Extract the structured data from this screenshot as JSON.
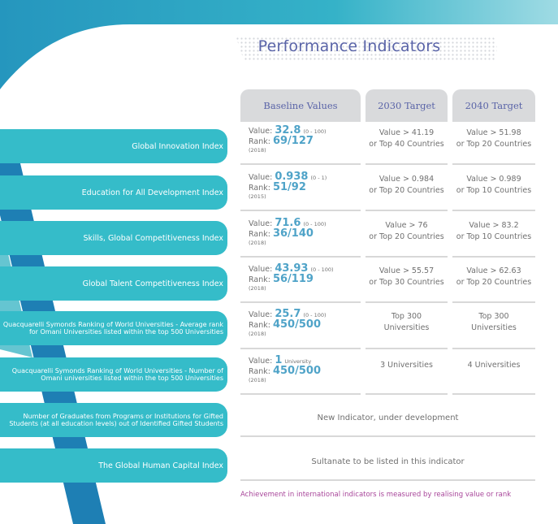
{
  "title": "Performance Indicators",
  "columns": [
    "Baseline Values",
    "2030 Target",
    "2040 Target"
  ],
  "rows": [
    {
      "label": "Global Innovation Index",
      "value_label": "Value:",
      "value": "32.8",
      "value_note": "(0 - 100)",
      "rank_label": "Rank:",
      "rank": "69/127",
      "year": "(2018)",
      "target_2030": "Value > 41.19\nor Top 40 Countries",
      "target_2040": "Value > 51.98\nor Top 20 Countries"
    },
    {
      "label": "Education for All Development Index",
      "value_label": "Value:",
      "value": "0.938",
      "value_note": "(0 - 1)",
      "rank_label": "Rank:",
      "rank": "51/92",
      "year": "(2015)",
      "target_2030": "Value > 0.984\nor Top 20 Countries",
      "target_2040": "Value > 0.989\nor Top 10 Countries"
    },
    {
      "label": "Skills, Global Competitiveness Index",
      "value_label": "Value:",
      "value": "71.6",
      "value_note": "(0 - 100)",
      "rank_label": "Rank:",
      "rank": "36/140",
      "year": "(2018)",
      "target_2030": "Value > 76\nor Top 20 Countries",
      "target_2040": "Value > 83.2\nor Top 10 Countries"
    },
    {
      "label": "Global Talent Competitiveness Index",
      "value_label": "Value:",
      "value": "43.93",
      "value_note": "(0 - 100)",
      "rank_label": "Rank:",
      "rank": "56/119",
      "year": "(2018)",
      "target_2030": "Value > 55.57\nor Top 30 Countries",
      "target_2040": "Value > 62.63\nor Top 20 Countries"
    },
    {
      "label": "Quacquarelli Symonds Ranking of World Universities - Average rank for Omani Universities listed within the top 500 Universities",
      "value_label": "Value:",
      "value": "25.7",
      "value_note": "(0 - 100)",
      "rank_label": "Rank:",
      "rank": "450/500",
      "year": "(2018)",
      "target_2030": "Top 300\nUniversities",
      "target_2040": "Top 300\nUniversities"
    },
    {
      "label": "Quacquarelli Symonds Ranking of World Universities - Number of Omani universities listed within the top 500 Universities",
      "value_label": "Value:",
      "value": "1",
      "value_note": "University",
      "rank_label": "Rank:",
      "rank": "450/500",
      "year": "(2018)",
      "target_2030": "3 Universities",
      "target_2040": "4 Universities"
    },
    {
      "label": "Number of Graduates from Programs or Institutions for Gifted Students (at all education levels) out of Identified Gifted Students",
      "span_text": "New Indicator, under development"
    },
    {
      "label": "The Global Human Capital Index",
      "span_text": "Sultanate to be listed in this indicator"
    }
  ],
  "note": "Achievement in international indicators is measured by realising value or rank",
  "colors": {
    "title": "#5a64a8",
    "label_bg": "#35bcc9",
    "value": "#4fa3c8",
    "note": "#a8469a",
    "dark_band": "#1e7fb4"
  }
}
